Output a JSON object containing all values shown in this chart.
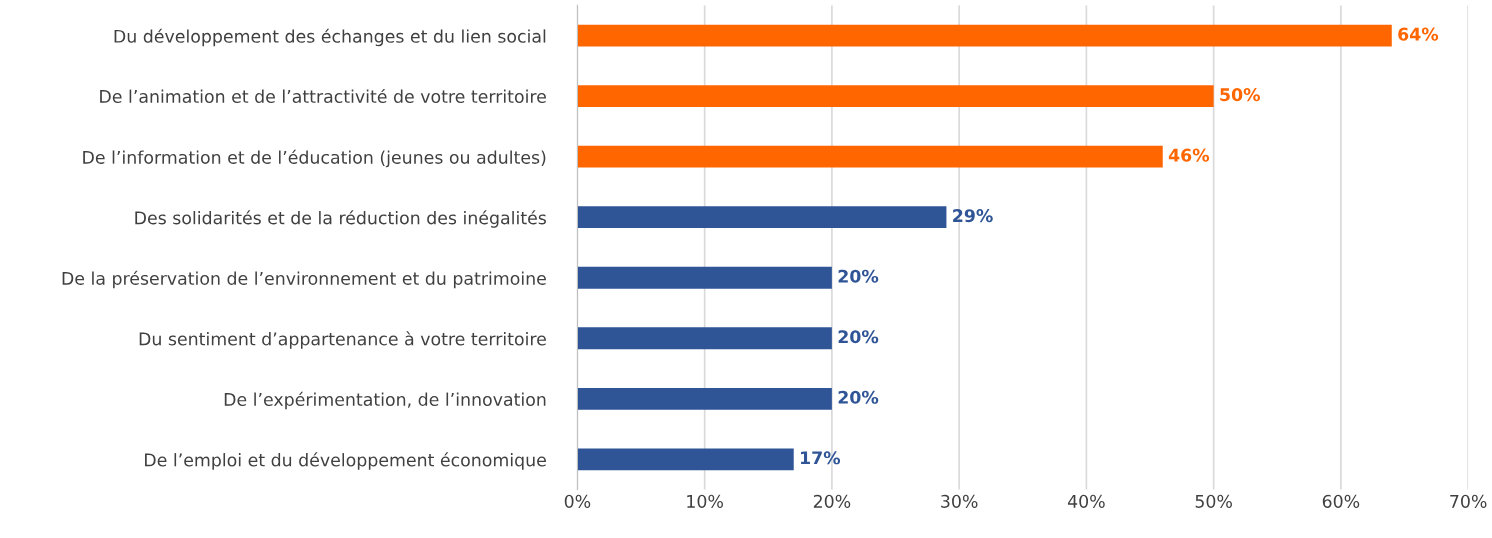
{
  "chart_data": {
    "type": "bar",
    "orientation": "horizontal",
    "categories": [
      "Du développement des échanges et du lien social",
      "De l’animation et de l’attractivité de votre territoire",
      "De l’information et de l’éducation (jeunes ou adultes)",
      "Des solidarités et de la réduction des inégalités",
      "De la préservation de l’environnement et du patrimoine",
      "Du sentiment d’appartenance à votre territoire",
      "De l’expérimentation, de l’innovation",
      "De l’emploi et du développement économique"
    ],
    "values": [
      64,
      50,
      46,
      29,
      20,
      20,
      20,
      17
    ],
    "colors": [
      "#ff6600",
      "#ff6600",
      "#ff6600",
      "#2f5597",
      "#2f5597",
      "#2f5597",
      "#2f5597",
      "#2f5597"
    ],
    "value_labels": [
      "64%",
      "50%",
      "46%",
      "29%",
      "20%",
      "20%",
      "20%",
      "17%"
    ],
    "xlim": [
      0,
      70
    ],
    "xticks": [
      {
        "value": 0,
        "label": "0%"
      },
      {
        "value": 10,
        "label": "10%"
      },
      {
        "value": 20,
        "label": "20%"
      },
      {
        "value": 30,
        "label": "30%"
      },
      {
        "value": 40,
        "label": "40%"
      },
      {
        "value": 50,
        "label": "50%"
      },
      {
        "value": 60,
        "label": "60%"
      },
      {
        "value": 70,
        "label": "70%"
      }
    ],
    "grid": "x",
    "legend": false
  }
}
